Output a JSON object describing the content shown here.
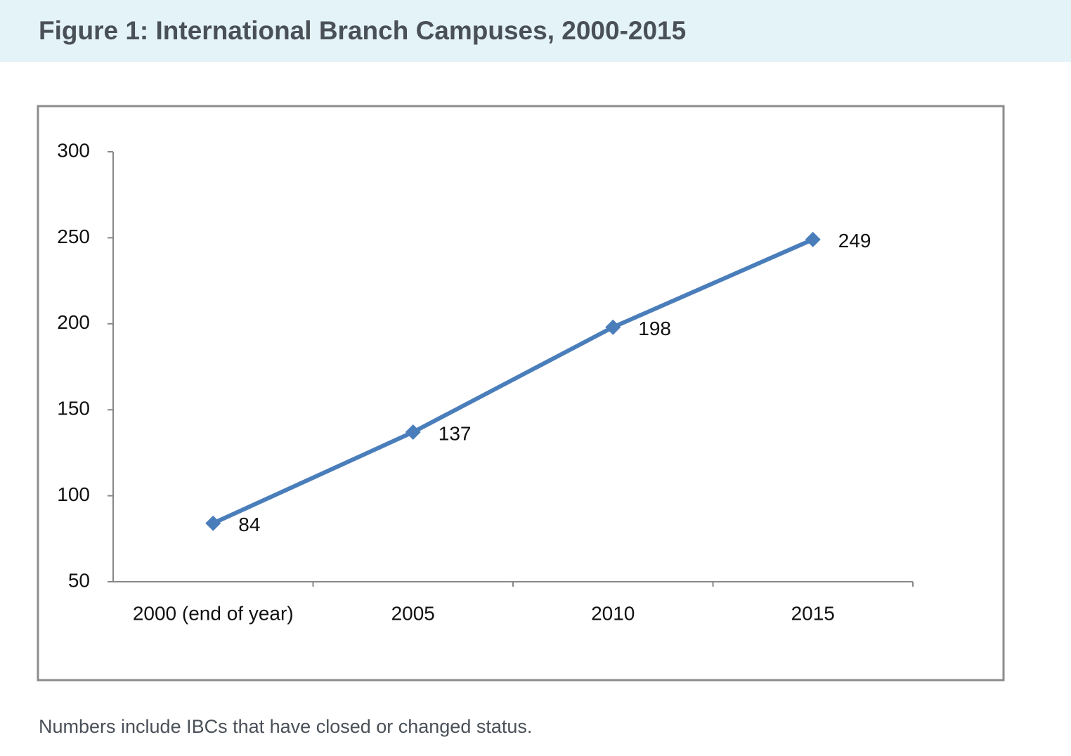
{
  "chart_data": {
    "type": "line",
    "title": "Figure 1: International Branch Campuses, 2000-2015",
    "note": "Numbers include IBCs that have closed or changed status.",
    "categories": [
      "2000 (end of year)",
      "2005",
      "2010",
      "2015"
    ],
    "values": [
      84,
      137,
      198,
      249
    ],
    "color": "#4a7ebb",
    "ylim": [
      50,
      300
    ],
    "yticks": [
      50,
      100,
      150,
      200,
      250,
      300
    ],
    "grid": false
  }
}
